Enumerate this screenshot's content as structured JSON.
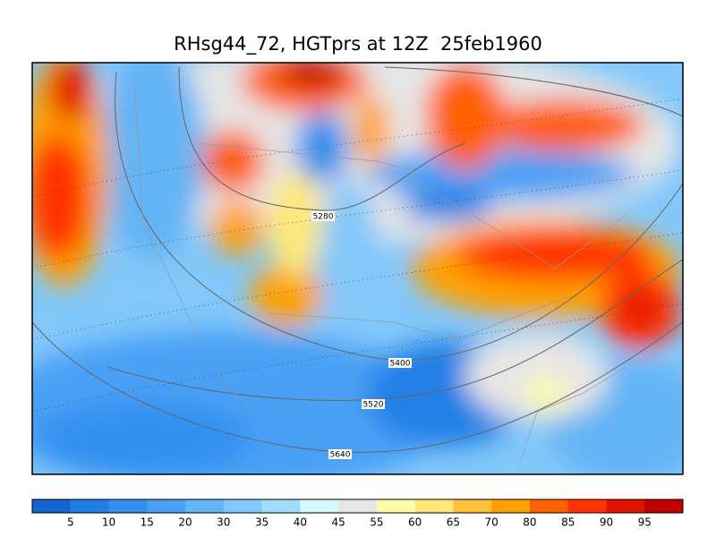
{
  "title": "RHsg44_72, HGTprs at 12Z  25feb1960",
  "contour_labels": [
    "5280",
    "5400",
    "5520",
    "5640"
  ],
  "colorbar": {
    "labels": [
      "5",
      "10",
      "15",
      "20",
      "30",
      "35",
      "40",
      "45",
      "55",
      "60",
      "65",
      "70",
      "80",
      "85",
      "90",
      "95"
    ],
    "colors": [
      "#1464d2",
      "#2080e6",
      "#3290f0",
      "#4aa0f5",
      "#64b4f5",
      "#82c8fa",
      "#a0dcfa",
      "#d2f8fa",
      "#e6e6e6",
      "#fffaaa",
      "#ffe878",
      "#ffc03c",
      "#ffa000",
      "#ff6000",
      "#ff3200",
      "#e11400",
      "#c00000"
    ]
  }
}
